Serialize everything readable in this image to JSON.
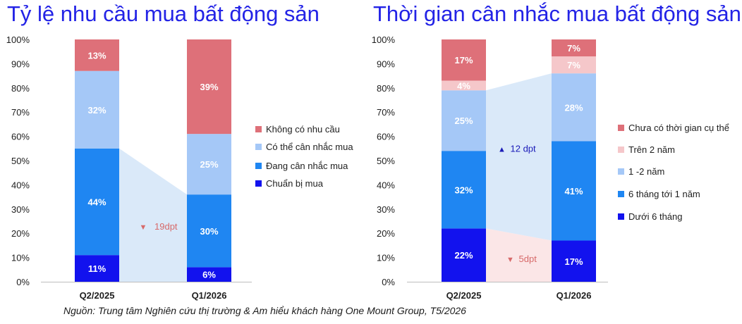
{
  "source_note": "Nguồn: Trung tâm Nghiên cứu thị trường & Am hiểu khách hàng One Mount Group, T5/2026",
  "chart_data": [
    {
      "type": "bar",
      "stacked": true,
      "title": "Tỷ lệ nhu cầu mua bất động sản",
      "categories": [
        "Q2/2025",
        "Q1/2026"
      ],
      "ylim": [
        0,
        100
      ],
      "yticks": [
        "0%",
        "10%",
        "20%",
        "30%",
        "40%",
        "50%",
        "60%",
        "70%",
        "80%",
        "90%",
        "100%"
      ],
      "grid": false,
      "legend": "right",
      "series": [
        {
          "name": "Chuẩn bị mua",
          "values": [
            11,
            6
          ],
          "labels": [
            "11%",
            "6%"
          ],
          "color": "#1212ee",
          "text_color": "#ffffff"
        },
        {
          "name": "Đang cân nhắc mua",
          "values": [
            44,
            30
          ],
          "labels": [
            "44%",
            "30%"
          ],
          "color": "#1f86f2",
          "text_color": "#ffffff"
        },
        {
          "name": "Có thể cân nhắc mua",
          "values": [
            32,
            25
          ],
          "labels": [
            "32%",
            "25%"
          ],
          "color": "#a5c8f7",
          "text_color": "#ffffff"
        },
        {
          "name": "Không có nhu cầu",
          "values": [
            13,
            39
          ],
          "labels": [
            "13%",
            "39%"
          ],
          "color": "#de7079",
          "text_color": "#ffffff"
        }
      ],
      "annotations": [
        {
          "text": "19dpt",
          "direction": "down",
          "color": "#d76a6a",
          "between_top": 55,
          "between_end": 36
        }
      ]
    },
    {
      "type": "bar",
      "stacked": true,
      "title": "Thời gian cân nhắc mua bất động sản",
      "categories": [
        "Q2/2025",
        "Q1/2026"
      ],
      "ylim": [
        0,
        100
      ],
      "yticks": [
        "0%",
        "10%",
        "20%",
        "30%",
        "40%",
        "50%",
        "60%",
        "70%",
        "80%",
        "90%",
        "100%"
      ],
      "grid": false,
      "legend": "right",
      "series": [
        {
          "name": "Dưới 6 tháng",
          "values": [
            22,
            17
          ],
          "labels": [
            "22%",
            "17%"
          ],
          "color": "#1212ee",
          "text_color": "#ffffff"
        },
        {
          "name": "6 tháng tới 1 năm",
          "values": [
            32,
            41
          ],
          "labels": [
            "32%",
            "41%"
          ],
          "color": "#1f86f2",
          "text_color": "#ffffff"
        },
        {
          "name": "1 -2 năm",
          "values": [
            25,
            28
          ],
          "labels": [
            "25%",
            "28%"
          ],
          "color": "#a5c8f7",
          "text_color": "#ffffff"
        },
        {
          "name": "Trên 2 năm",
          "values": [
            4,
            7
          ],
          "labels": [
            "4%",
            "7%"
          ],
          "color": "#f5c7ca",
          "text_color": "#ffffff"
        },
        {
          "name": "Chưa có thời gian cụ thể",
          "values": [
            17,
            7
          ],
          "labels": [
            "17%",
            "7%"
          ],
          "color": "#de7079",
          "text_color": "#ffffff"
        }
      ],
      "annotations": [
        {
          "text": "12 dpt",
          "direction": "up",
          "color": "#1a1ab8"
        },
        {
          "text": "5dpt",
          "direction": "down",
          "color": "#d76a6a"
        }
      ]
    }
  ]
}
